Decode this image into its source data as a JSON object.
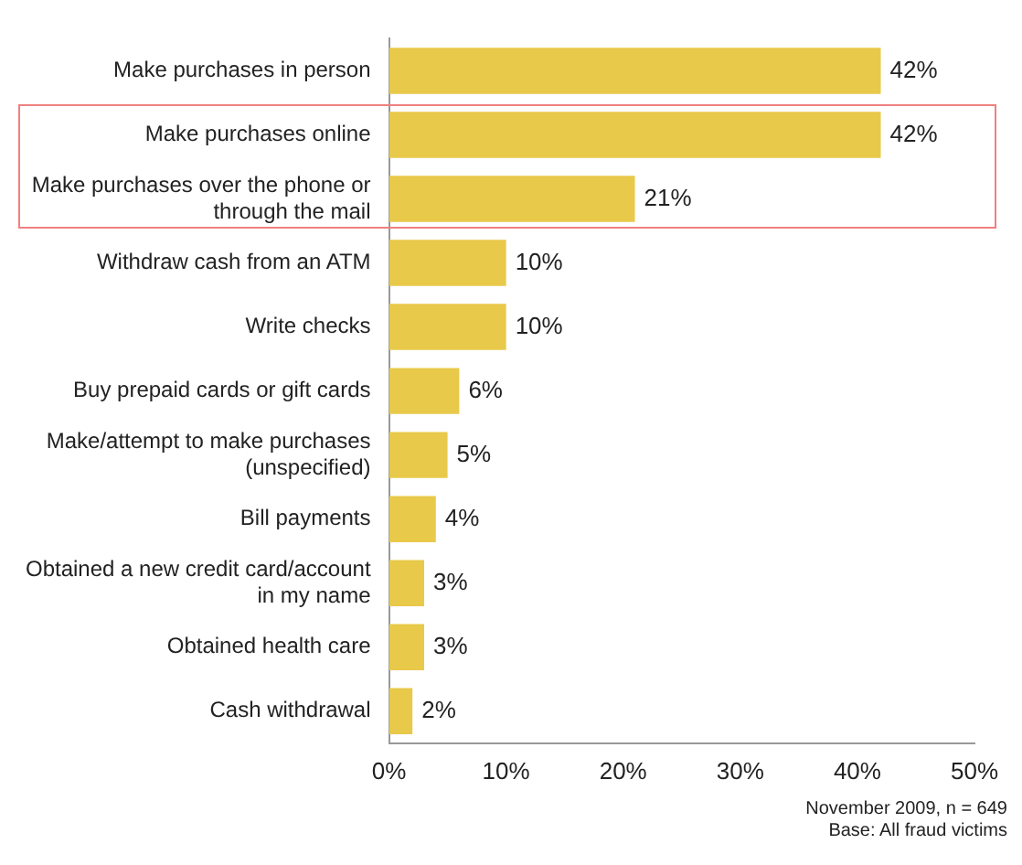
{
  "chart_data": {
    "type": "bar",
    "orientation": "horizontal",
    "categories": [
      "Make purchases in person",
      "Make purchases online",
      "Make purchases over the phone or through the mail",
      "Withdraw cash from an ATM",
      "Write checks",
      "Buy prepaid cards or gift cards",
      "Make/attempt to make purchases (unspecified)",
      "Bill payments",
      "Obtained a new credit card/account in my name",
      "Obtained health care",
      "Cash withdrawal"
    ],
    "values": [
      42,
      42,
      21,
      10,
      10,
      6,
      5,
      4,
      3,
      3,
      2
    ],
    "color": "#e8c94a",
    "value_labels": [
      "42%",
      "42%",
      "21%",
      "10%",
      "10%",
      "6%",
      "5%",
      "4%",
      "3%",
      "3%",
      "2%"
    ],
    "xlim": [
      0,
      50
    ],
    "xticks": [
      {
        "value": 0,
        "label": "0%"
      },
      {
        "value": 10,
        "label": "10%"
      },
      {
        "value": 20,
        "label": "20%"
      },
      {
        "value": 30,
        "label": "30%"
      },
      {
        "value": 40,
        "label": "40%"
      },
      {
        "value": 50,
        "label": "50%"
      }
    ],
    "grid": false,
    "legend": false,
    "annotations": [
      "November 2009, n = 649",
      "Base: All fraud victims"
    ]
  }
}
